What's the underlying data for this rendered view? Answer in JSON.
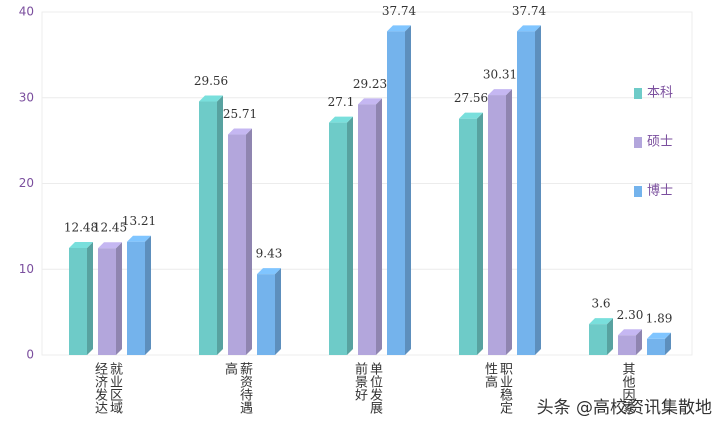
{
  "chart_data": {
    "type": "bar",
    "categories": [
      "就业区域经济发达",
      "薪资待遇高",
      "单位发展前景好",
      "职业稳定性高",
      "其他因素"
    ],
    "series": [
      {
        "name": "本科",
        "color": "#6ecbc8",
        "values": [
          12.48,
          29.56,
          27.1,
          27.56,
          3.6
        ]
      },
      {
        "name": "硕士",
        "color": "#b3a6dc",
        "values": [
          12.45,
          25.71,
          29.23,
          30.31,
          2.3
        ],
        "value_labels": [
          "12.45",
          "25.71",
          "29.23",
          "30.31",
          "2.30"
        ]
      },
      {
        "name": "博士",
        "color": "#74b3ec",
        "values": [
          13.21,
          9.43,
          37.74,
          37.74,
          1.89
        ]
      }
    ],
    "ylim": [
      0,
      40
    ],
    "yticks": [
      0,
      10,
      20,
      30,
      40
    ],
    "grid": true,
    "legend": "right",
    "watermark": "头条 @高校资讯集散地"
  }
}
